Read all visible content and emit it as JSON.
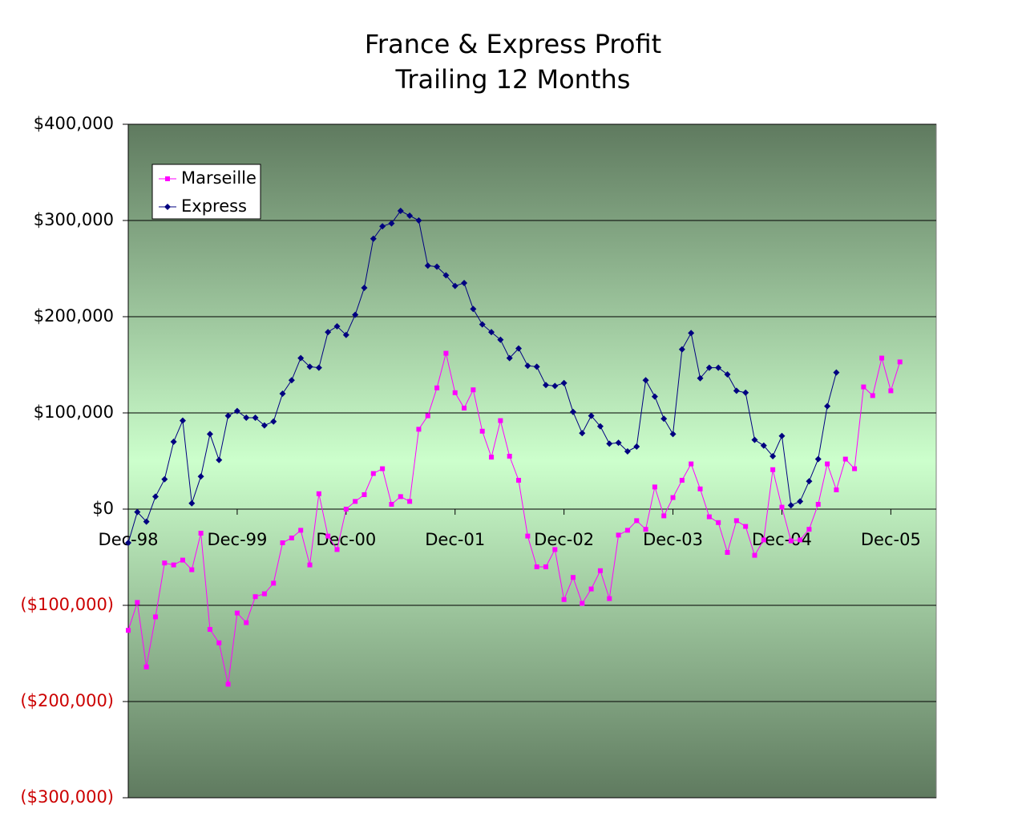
{
  "chart_data": {
    "type": "line",
    "title": "France & Express Profit",
    "subtitle": "Trailing 12 Months",
    "categories": [
      "Dec-98",
      null,
      null,
      null,
      null,
      null,
      null,
      null,
      null,
      null,
      null,
      null,
      "Dec-99",
      null,
      null,
      null,
      null,
      null,
      null,
      null,
      null,
      null,
      null,
      null,
      "Dec-00",
      null,
      null,
      null,
      null,
      null,
      null,
      null,
      null,
      null,
      null,
      null,
      "Dec-01",
      null,
      null,
      null,
      null,
      null,
      null,
      null,
      null,
      null,
      null,
      null,
      "Dec-02",
      null,
      null,
      null,
      null,
      null,
      null,
      null,
      null,
      null,
      null,
      null,
      "Dec-03",
      null,
      null,
      null,
      null,
      null,
      null,
      null,
      null,
      null,
      null,
      null,
      "Dec-04",
      null,
      null,
      null,
      null,
      null,
      null,
      null,
      null,
      null,
      null,
      null,
      "Dec-05",
      null,
      null,
      null,
      null,
      null
    ],
    "series": [
      {
        "name": "Marseille",
        "color": "#ff00ff",
        "marker": "square",
        "values": [
          -126000,
          -97000,
          -164000,
          -112000,
          -56000,
          -58000,
          -53000,
          -63000,
          -25000,
          -125000,
          -139000,
          -182000,
          -108000,
          -118000,
          -91000,
          -88000,
          -77000,
          -35000,
          -30000,
          -22000,
          -58000,
          16000,
          -28000,
          -42000,
          0,
          8000,
          15000,
          37000,
          42000,
          5000,
          13000,
          8000,
          83000,
          97000,
          126000,
          162000,
          121000,
          105000,
          124000,
          81000,
          54000,
          92000,
          55000,
          30000,
          -28000,
          -60000,
          -60000,
          -42000,
          -94000,
          -71000,
          -98000,
          -83000,
          -64000,
          -93000,
          -27000,
          -22000,
          -12000,
          -21000,
          23000,
          -7000,
          12000,
          30000,
          47000,
          21000,
          -8000,
          -14000,
          -45000,
          -12000,
          -18000,
          -48000,
          -32000,
          41000,
          2000,
          -33000,
          -32000,
          -21000,
          5000,
          47000,
          20000,
          52000,
          42000,
          127000,
          118000,
          157000,
          123000,
          153000,
          null,
          null,
          null,
          null
        ]
      },
      {
        "name": "Express",
        "color": "#000080",
        "marker": "diamond",
        "values": [
          -35000,
          -3000,
          -13000,
          13000,
          31000,
          70000,
          92000,
          6000,
          34000,
          78000,
          51000,
          97000,
          102000,
          95000,
          95000,
          87000,
          91000,
          120000,
          134000,
          157000,
          148000,
          147000,
          184000,
          190000,
          181000,
          202000,
          230000,
          281000,
          294000,
          297000,
          310000,
          305000,
          300000,
          253000,
          252000,
          243000,
          232000,
          235000,
          208000,
          192000,
          184000,
          176000,
          157000,
          167000,
          149000,
          148000,
          129000,
          128000,
          131000,
          101000,
          79000,
          97000,
          86000,
          68000,
          69000,
          60000,
          65000,
          134000,
          117000,
          94000,
          78000,
          166000,
          183000,
          136000,
          147000,
          147000,
          140000,
          123000,
          121000,
          72000,
          66000,
          55000,
          76000,
          4000,
          8000,
          29000,
          52000,
          107000,
          142000,
          null,
          null,
          null,
          null,
          null,
          null,
          null,
          null,
          null,
          null,
          null
        ]
      }
    ],
    "ylim": [
      -300000,
      400000
    ],
    "yticks": [
      {
        "value": -300000,
        "label": "($300,000)"
      },
      {
        "value": -200000,
        "label": "($200,000)"
      },
      {
        "value": -100000,
        "label": "($100,000)"
      },
      {
        "value": 0,
        "label": "$0"
      },
      {
        "value": 100000,
        "label": "$100,000"
      },
      {
        "value": 200000,
        "label": "$200,000"
      },
      {
        "value": 300000,
        "label": "$300,000"
      },
      {
        "value": 400000,
        "label": "$400,000"
      }
    ],
    "grid": true,
    "legend": "top-left",
    "negative_label_color": "#cc0000"
  }
}
